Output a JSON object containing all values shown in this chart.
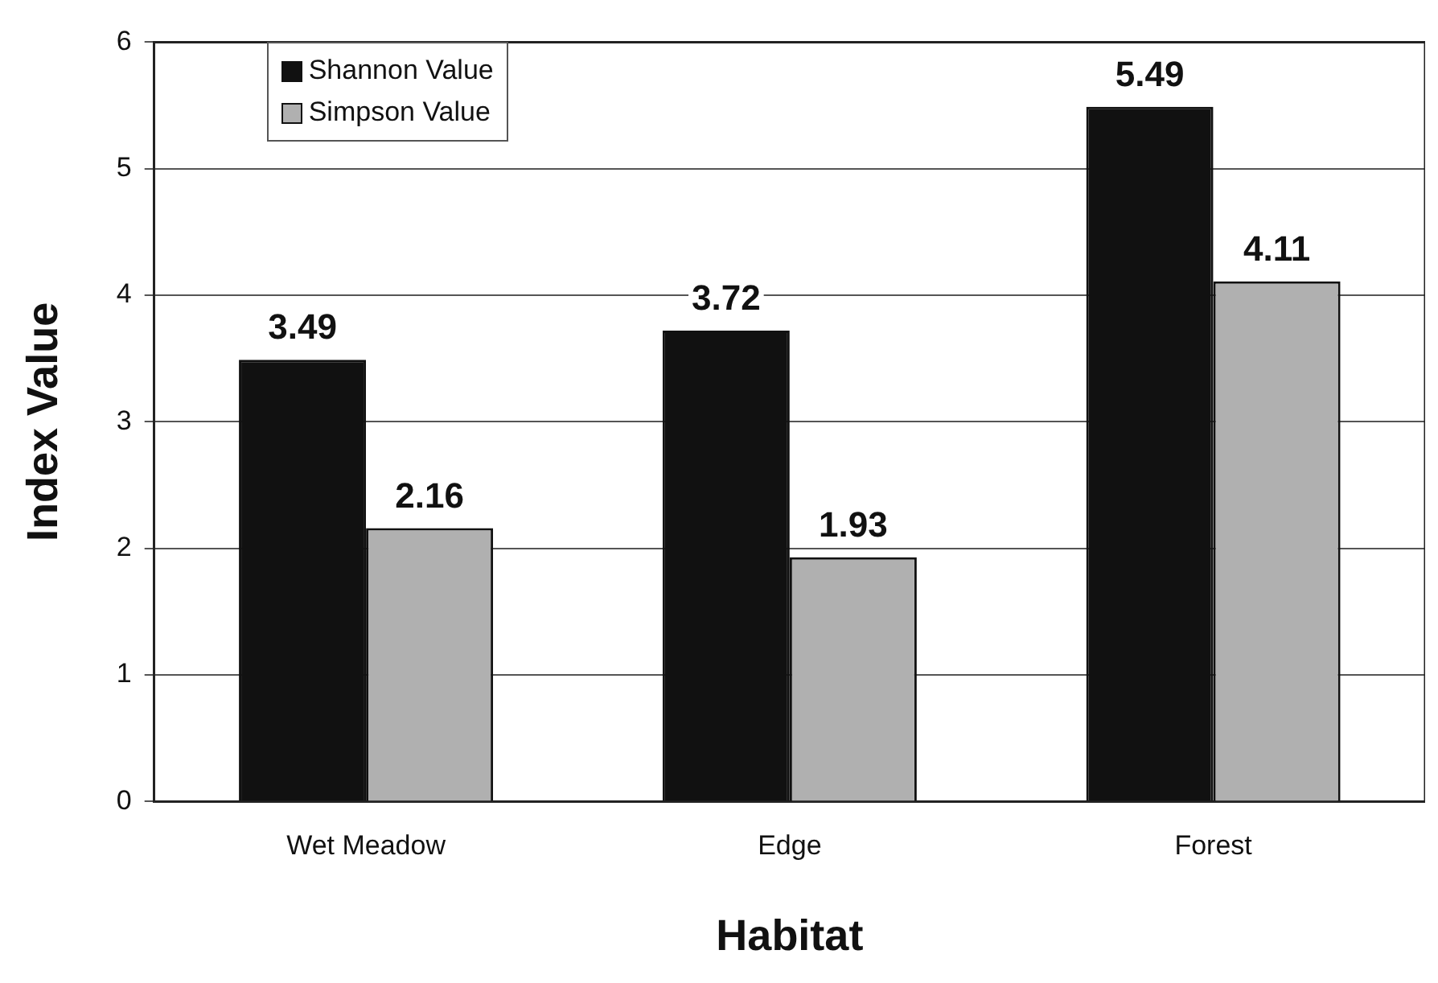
{
  "chart_data": {
    "type": "bar",
    "xlabel": "Habitat",
    "ylabel": "Index Value",
    "categories": [
      "Wet Meadow",
      "Edge",
      "Forest"
    ],
    "series": [
      {
        "name": "Shannon Value",
        "color": "#111111",
        "values": [
          3.49,
          3.72,
          5.49
        ]
      },
      {
        "name": "Simpson Value",
        "color": "#b0b0b0",
        "values": [
          2.16,
          1.93,
          4.11
        ]
      }
    ],
    "ylim": [
      0,
      6
    ],
    "yticks": [
      0,
      1,
      2,
      3,
      4,
      5,
      6
    ],
    "grid": "y",
    "legend": "top left",
    "data_labels": true
  }
}
